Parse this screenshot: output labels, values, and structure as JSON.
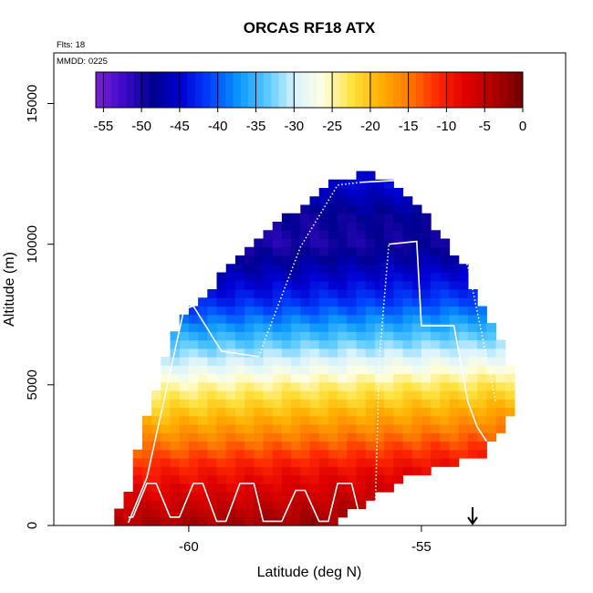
{
  "chart_data": {
    "type": "heatmap",
    "title": "ORCAS RF18 ATX",
    "annotations": {
      "flights": "Flts: 18",
      "date": "MMDD: 0225"
    },
    "xlabel": "Latitude (deg N)",
    "ylabel": "Altitude (m)",
    "xlim": [
      -62.9,
      -51.9
    ],
    "ylim": [
      0,
      16800
    ],
    "x_ticks": [
      -60,
      -55
    ],
    "x_tick_labels": [
      "-60",
      "-55"
    ],
    "y_ticks": [
      0,
      5000,
      10000,
      15000
    ],
    "y_tick_labels": [
      "0",
      "5000",
      "10000",
      "15000"
    ],
    "colorbar": {
      "variable": "ATX",
      "range": [
        -56,
        0
      ],
      "ticks": [
        -55,
        -50,
        -45,
        -40,
        -35,
        -30,
        -25,
        -20,
        -15,
        -10,
        -5,
        0
      ],
      "tick_labels": [
        "-55",
        "-50",
        "-45",
        "-40",
        "-35",
        "-30",
        "-25",
        "-20",
        "-15",
        "-10",
        "-5",
        "0"
      ],
      "colors": [
        "#7a1fd6",
        "#3b0ac8",
        "#00008f",
        "#0000d4",
        "#0040ff",
        "#0a96ff",
        "#55c8ff",
        "#d9f3ff",
        "#ffffe0",
        "#ffe23c",
        "#ffb000",
        "#ff7a00",
        "#ff2800",
        "#e00000",
        "#b00000",
        "#6e0000"
      ]
    },
    "field": {
      "description_values": "temperature (deg C) as function of altitude, roughly -52 at 12200 m to 0 near surface",
      "profile_altitude_m": [
        0,
        2000,
        4000,
        5000,
        6000,
        7000,
        8000,
        9000,
        10000,
        11000,
        12200
      ],
      "profile_value": [
        -2,
        -9,
        -19,
        -24,
        -30,
        -36,
        -42,
        -46,
        -50,
        -49,
        -45
      ],
      "lat_min_by_altitude": [
        [
          300,
          -61.5
        ],
        [
          1200,
          -61.2
        ],
        [
          2600,
          -61.0
        ],
        [
          3800,
          -60.8
        ],
        [
          5500,
          -60.5
        ],
        [
          6500,
          -60.3
        ],
        [
          7600,
          -60.0
        ],
        [
          8500,
          -59.4
        ],
        [
          9500,
          -58.9
        ],
        [
          10500,
          -58.2
        ],
        [
          11500,
          -57.4
        ],
        [
          12200,
          -56.8
        ],
        [
          12500,
          -56.3
        ]
      ],
      "lat_max_by_altitude": [
        [
          300,
          -56.9
        ],
        [
          1000,
          -56.1
        ],
        [
          1700,
          -55.4
        ],
        [
          2500,
          -53.8
        ],
        [
          3300,
          -53.4
        ],
        [
          4200,
          -53.0
        ],
        [
          5500,
          -53.1
        ],
        [
          6800,
          -53.5
        ],
        [
          8000,
          -53.9
        ],
        [
          9000,
          -54.1
        ],
        [
          10500,
          -54.8
        ],
        [
          11500,
          -55.2
        ],
        [
          12200,
          -55.7
        ],
        [
          12500,
          -56.1
        ]
      ]
    },
    "flight_track": {
      "segments": [
        {
          "style": "solid",
          "lat": [
            -61.3,
            -60.9,
            -60.1,
            -59.9,
            -59.3,
            -58.5
          ],
          "alt": [
            100,
            1700,
            7700,
            7800,
            6200,
            6000
          ]
        },
        {
          "style": "dotted",
          "lat": [
            -58.5,
            -57.6,
            -56.8,
            -56.3
          ],
          "alt": [
            6000,
            9900,
            12100,
            12200
          ]
        },
        {
          "style": "solid",
          "lat": [
            -56.3,
            -55.2,
            -55.0
          ],
          "alt": [
            12200,
            12300,
            12200
          ]
        },
        {
          "style": "dotted",
          "lat": [
            -55.0,
            -54.5,
            -54.0,
            -53.4
          ],
          "alt": [
            12200,
            11300,
            9200,
            4400
          ]
        },
        {
          "style": "solid",
          "lat": [
            -61.3,
            -61.2,
            -60.9,
            -60.7,
            -60.4,
            -60.2,
            -59.9,
            -59.7,
            -59.4,
            -59.2,
            -58.9,
            -58.6,
            -58.4,
            -58.0,
            -57.7,
            -57.5,
            -57.2,
            -57.0,
            -56.8,
            -56.5,
            -56.3,
            -56.0
          ],
          "alt": [
            300,
            300,
            1500,
            1500,
            300,
            300,
            1500,
            1500,
            150,
            150,
            1500,
            1500,
            150,
            150,
            1250,
            1250,
            150,
            150,
            1500,
            1500,
            150,
            200
          ]
        },
        {
          "style": "dotted",
          "lat": [
            -56.0,
            -55.9,
            -55.7
          ],
          "alt": [
            200,
            6000,
            10000
          ]
        },
        {
          "style": "solid",
          "lat": [
            -55.7,
            -55.1,
            -55.0,
            -54.3,
            -54.0,
            -53.8,
            -53.6
          ],
          "alt": [
            10000,
            10100,
            7100,
            7100,
            4400,
            3500,
            3000
          ]
        }
      ]
    },
    "marker": {
      "symbol": "arrow-down",
      "lat": -53.9
    }
  }
}
